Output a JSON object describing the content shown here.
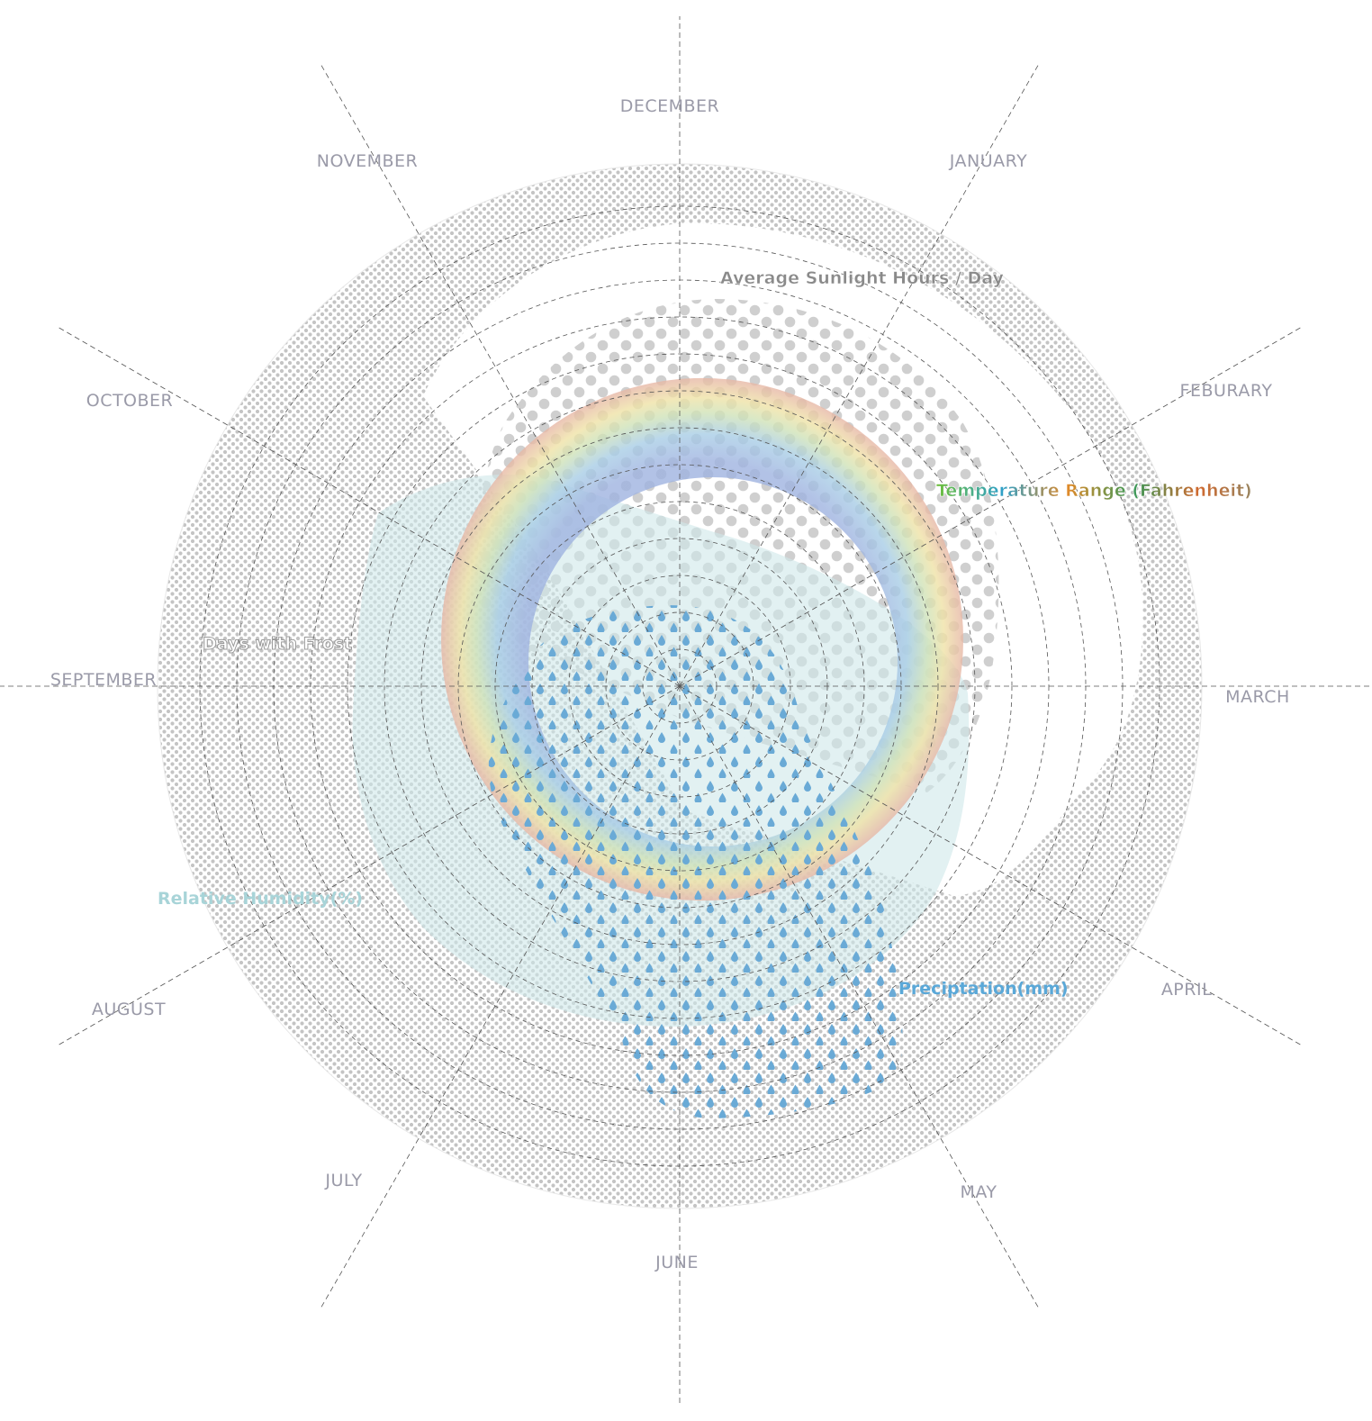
{
  "months": [
    "DECEMBER",
    "JANUARY",
    "FEBURARY",
    "MARCH",
    "APRIL",
    "MAY",
    "JUNE",
    "JULY",
    "AUGUST",
    "SEPTEMBER",
    "OCTOBER",
    "NOVEMBER"
  ],
  "labels": {
    "sunlight": "Average Sunlight Hours / Day",
    "temperature": "Temperature Range (Fahrenheit)",
    "frost": "Days with Frost",
    "humidity": "Relative Humidity(%)",
    "precipitation": "Preciptation(mm)"
  },
  "colors": {
    "month_text": "#9a9aa8",
    "sunlight": "#8a8a8a",
    "humidity": "#a8d4d8",
    "precipitation": "#5aa8d8",
    "frost_dots": "#c4c4c4",
    "grid": "#555555"
  },
  "icons": {
    "precipitation_marker": "water-drop-icon",
    "frost_marker": "dot-icon",
    "sunlight_marker": "dot-icon"
  }
}
